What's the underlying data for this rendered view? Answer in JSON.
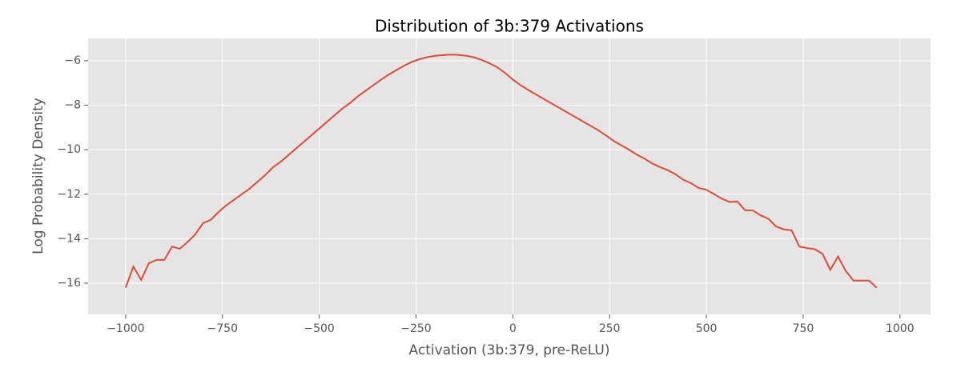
{
  "chart_data": {
    "type": "line",
    "title": "Distribution of 3b:379 Activations",
    "xlabel": "Activation (3b:379, pre-ReLU)",
    "ylabel": "Log Probability Density",
    "x": [
      -1000,
      -980,
      -960,
      -940,
      -920,
      -900,
      -880,
      -860,
      -840,
      -820,
      -800,
      -780,
      -760,
      -740,
      -720,
      -700,
      -680,
      -660,
      -640,
      -620,
      -600,
      -580,
      -560,
      -540,
      -520,
      -500,
      -480,
      -460,
      -440,
      -420,
      -400,
      -380,
      -360,
      -340,
      -320,
      -300,
      -280,
      -260,
      -240,
      -220,
      -200,
      -180,
      -160,
      -140,
      -120,
      -100,
      -80,
      -60,
      -40,
      -20,
      0,
      20,
      40,
      60,
      80,
      100,
      120,
      140,
      160,
      180,
      200,
      220,
      240,
      260,
      280,
      300,
      320,
      340,
      360,
      380,
      400,
      420,
      440,
      460,
      480,
      500,
      520,
      540,
      560,
      580,
      600,
      620,
      640,
      660,
      680,
      700,
      720,
      740,
      760,
      780,
      800,
      820,
      840,
      860,
      880,
      900,
      920,
      940
    ],
    "series": [
      {
        "color": "#e24a33",
        "values": [
          -16.2,
          -15.25,
          -15.85,
          -15.1,
          -14.95,
          -14.95,
          -14.35,
          -14.45,
          -14.15,
          -13.8,
          -13.3,
          -13.15,
          -12.8,
          -12.5,
          -12.25,
          -12.0,
          -11.75,
          -11.45,
          -11.15,
          -10.8,
          -10.55,
          -10.25,
          -9.95,
          -9.65,
          -9.35,
          -9.05,
          -8.75,
          -8.45,
          -8.15,
          -7.9,
          -7.6,
          -7.35,
          -7.1,
          -6.85,
          -6.62,
          -6.42,
          -6.22,
          -6.05,
          -5.93,
          -5.84,
          -5.78,
          -5.75,
          -5.73,
          -5.74,
          -5.78,
          -5.85,
          -5.97,
          -6.12,
          -6.3,
          -6.55,
          -6.85,
          -7.1,
          -7.32,
          -7.52,
          -7.72,
          -7.92,
          -8.12,
          -8.32,
          -8.52,
          -8.72,
          -8.92,
          -9.12,
          -9.35,
          -9.6,
          -9.8,
          -10.0,
          -10.22,
          -10.4,
          -10.62,
          -10.78,
          -10.92,
          -11.1,
          -11.35,
          -11.5,
          -11.72,
          -11.8,
          -12.0,
          -12.2,
          -12.35,
          -12.33,
          -12.72,
          -12.73,
          -12.95,
          -13.1,
          -13.45,
          -13.58,
          -13.62,
          -14.35,
          -14.42,
          -14.47,
          -14.68,
          -15.4,
          -14.8,
          -15.45,
          -15.88,
          -15.88,
          -15.88,
          -16.2
        ]
      }
    ],
    "xlim": [
      -1097,
      1079
    ],
    "ylim": [
      -17.4,
      -5.0
    ],
    "xticks": [
      {
        "value": -1000,
        "label": "−1000"
      },
      {
        "value": -750,
        "label": "−750"
      },
      {
        "value": -500,
        "label": "−500"
      },
      {
        "value": -250,
        "label": "−250"
      },
      0,
      250,
      500,
      750,
      1000
    ],
    "yticks": [
      {
        "value": -16,
        "label": "−16"
      },
      {
        "value": -14,
        "label": "−14"
      },
      {
        "value": -12,
        "label": "−12"
      },
      {
        "value": -10,
        "label": "−10"
      },
      {
        "value": -8,
        "label": "−8"
      },
      {
        "value": -6,
        "label": "−6"
      }
    ],
    "grid": true
  }
}
